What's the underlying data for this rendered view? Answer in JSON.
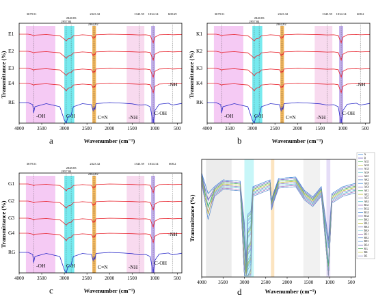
{
  "panels": [
    {
      "letter": "a",
      "ylabel": "Transmittance (%)",
      "xlabel": "Wavenumber (cm⁻¹)",
      "xticks": [
        "4000",
        "3500",
        "3000",
        "2500",
        "2000",
        "1500",
        "1000",
        "500"
      ],
      "peaks": [
        "3679.51",
        "2957.84",
        "2848.83",
        "2363.82",
        "2323.32",
        "1345.59",
        "1034.14",
        "608.69"
      ],
      "series": [
        "E1",
        "E2",
        "E3",
        "E4",
        "RE"
      ],
      "groups": [
        "-OH",
        "C-H",
        "C≡N",
        "-NH",
        "C-OH",
        "-NH"
      ]
    },
    {
      "letter": "b",
      "ylabel": "Transmittance (%)",
      "xlabel": "Wavenumber (cm⁻¹)",
      "xticks": [
        "4000",
        "3500",
        "3000",
        "2500",
        "2000",
        "1500",
        "1000",
        "500"
      ],
      "peaks": [
        "3679.51",
        "2957.84",
        "2848.83",
        "2363.82",
        "2323.32",
        "1345.59",
        "1034.14",
        "608.2"
      ],
      "series": [
        "K1",
        "K2",
        "K3",
        "K4",
        "RK"
      ],
      "groups": [
        "-OH",
        "C-H",
        "C≡N",
        "-NH",
        "C-OH",
        "-NH"
      ]
    },
    {
      "letter": "c",
      "ylabel": "Transmittance (%)",
      "xlabel": "Wavenumber (cm⁻¹)",
      "xticks": [
        "4000",
        "3500",
        "3000",
        "2500",
        "2000",
        "1500",
        "1000",
        "500"
      ],
      "peaks": [
        "3679.51",
        "2957.84",
        "2848.83",
        "2363.82",
        "2323.32",
        "1345.59",
        "1034.14",
        "608.2"
      ],
      "series": [
        "G1",
        "G2",
        "G3",
        "G4",
        "RG"
      ],
      "groups": [
        "-OH",
        "C-H",
        "C≡N",
        "-NH",
        "C-OH",
        "-NH"
      ]
    },
    {
      "letter": "d",
      "ylabel": "Transmittance (%)",
      "xlabel": "Wavenumber (cm⁻¹)",
      "xticks": [
        "4000",
        "3500",
        "3000",
        "2500",
        "2000",
        "1500",
        "1000",
        "500"
      ],
      "legend": [
        "A",
        "B",
        "AG1",
        "AG2",
        "AG3",
        "AG4",
        "AK1",
        "AK2",
        "AK3",
        "AK4",
        "AE1",
        "AE2",
        "AE3",
        "AE4",
        "BG1",
        "BG2",
        "BG3",
        "BG4",
        "BK1",
        "BK2",
        "BK3",
        "BK4",
        "BE1",
        "BE2",
        "BE3",
        "BE4",
        "RG",
        "RK",
        "RE"
      ]
    }
  ],
  "colors": {
    "red": "#e8202a",
    "blue": "#2525c8",
    "oh_band": "#f2b8f0",
    "ch_band": "#5fe6ec",
    "cn_band": "#f6b24a",
    "nh_band": "#f6cdea",
    "coh_band": "#b59ee8",
    "grey_band": "#b0b0b0"
  },
  "chart_data": [
    {
      "type": "line",
      "title": "",
      "xlabel": "Wavenumber (cm⁻¹)",
      "ylabel": "Transmittance (%)",
      "xlim": [
        4000,
        400
      ],
      "x": [
        4000,
        3800,
        3700,
        3679.51,
        3650,
        3400,
        3100,
        3000,
        2957.84,
        2920,
        2848.83,
        2800,
        2600,
        2400,
        2363.82,
        2340,
        2323.32,
        2300,
        2000,
        1700,
        1500,
        1345.59,
        1200,
        1100,
        1034.14,
        1000,
        900,
        700,
        608.69,
        400
      ],
      "series": [
        {
          "name": "E1",
          "values": [
            0,
            0,
            -0.08,
            -0.15,
            -0.08,
            -0.03,
            -0.12,
            -0.4,
            -0.55,
            -0.38,
            -0.32,
            -0.12,
            -0.05,
            -0.1,
            -0.35,
            -0.2,
            -0.3,
            -0.05,
            0,
            -0.02,
            -0.04,
            -0.06,
            -0.05,
            -0.1,
            -0.7,
            -0.25,
            -0.05,
            -0.02,
            -0.05,
            -0.02
          ]
        },
        {
          "name": "E2",
          "values": [
            0,
            0,
            -0.08,
            -0.15,
            -0.08,
            -0.03,
            -0.12,
            -0.42,
            -0.58,
            -0.4,
            -0.33,
            -0.12,
            -0.05,
            -0.1,
            -0.36,
            -0.2,
            -0.3,
            -0.05,
            0,
            -0.02,
            -0.04,
            -0.06,
            -0.05,
            -0.1,
            -0.72,
            -0.25,
            -0.05,
            -0.02,
            -0.05,
            -0.02
          ]
        },
        {
          "name": "E3",
          "values": [
            0,
            0,
            -0.08,
            -0.15,
            -0.08,
            -0.03,
            -0.12,
            -0.42,
            -0.58,
            -0.4,
            -0.33,
            -0.12,
            -0.05,
            -0.1,
            -0.36,
            -0.2,
            -0.3,
            -0.05,
            0,
            -0.02,
            -0.04,
            -0.06,
            -0.05,
            -0.1,
            -0.72,
            -0.25,
            -0.05,
            -0.02,
            -0.05,
            -0.02
          ]
        },
        {
          "name": "E4",
          "values": [
            0,
            0,
            -0.08,
            -0.15,
            -0.08,
            -0.03,
            -0.12,
            -0.42,
            -0.6,
            -0.4,
            -0.33,
            -0.12,
            -0.05,
            -0.1,
            -0.36,
            -0.2,
            -0.3,
            -0.05,
            0,
            -0.02,
            -0.04,
            -0.06,
            -0.05,
            -0.1,
            -0.75,
            -0.25,
            -0.05,
            -0.02,
            -0.05,
            -0.02
          ]
        },
        {
          "name": "RE",
          "values": [
            0,
            0,
            -0.1,
            -0.5,
            -0.2,
            -0.05,
            -0.2,
            -0.85,
            -1.0,
            -0.7,
            -0.6,
            -0.2,
            -0.05,
            -0.1,
            -0.4,
            -0.22,
            -0.35,
            -0.05,
            0,
            -0.03,
            -0.06,
            -0.12,
            -0.1,
            -0.2,
            -1.0,
            -0.4,
            -0.08,
            -0.03,
            -0.12,
            -0.04
          ]
        }
      ]
    },
    {
      "type": "line",
      "title": "",
      "xlabel": "Wavenumber (cm⁻¹)",
      "ylabel": "Transmittance (%)",
      "xlim": [
        4000,
        400
      ],
      "x": [
        4000,
        3800,
        3700,
        3679.51,
        3650,
        3400,
        3100,
        3000,
        2957.84,
        2920,
        2848.83,
        2800,
        2600,
        2400,
        2363.82,
        2340,
        2323.32,
        2300,
        2000,
        1700,
        1500,
        1345.59,
        1200,
        1100,
        1034.14,
        1000,
        900,
        700,
        608.2,
        400
      ],
      "series": [
        {
          "name": "K1",
          "values": [
            0,
            0,
            -0.08,
            -0.15,
            -0.08,
            -0.03,
            -0.12,
            -0.4,
            -0.55,
            -0.38,
            -0.32,
            -0.12,
            -0.05,
            -0.1,
            -0.35,
            -0.2,
            -0.3,
            -0.05,
            0,
            -0.02,
            -0.04,
            -0.06,
            -0.05,
            -0.1,
            -0.7,
            -0.25,
            -0.05,
            -0.02,
            -0.05,
            -0.02
          ]
        },
        {
          "name": "K2",
          "values": [
            0,
            0,
            -0.08,
            -0.15,
            -0.08,
            -0.03,
            -0.12,
            -0.42,
            -0.58,
            -0.4,
            -0.33,
            -0.12,
            -0.05,
            -0.1,
            -0.36,
            -0.2,
            -0.3,
            -0.05,
            0,
            -0.02,
            -0.04,
            -0.06,
            -0.05,
            -0.1,
            -0.72,
            -0.25,
            -0.05,
            -0.02,
            -0.05,
            -0.02
          ]
        },
        {
          "name": "K3",
          "values": [
            0,
            0,
            -0.08,
            -0.15,
            -0.08,
            -0.03,
            -0.12,
            -0.42,
            -0.6,
            -0.4,
            -0.33,
            -0.12,
            -0.05,
            -0.1,
            -0.36,
            -0.2,
            -0.3,
            -0.05,
            0,
            -0.02,
            -0.04,
            -0.06,
            -0.05,
            -0.1,
            -0.72,
            -0.25,
            -0.05,
            -0.02,
            -0.05,
            -0.02
          ]
        },
        {
          "name": "K4",
          "values": [
            0,
            0,
            -0.08,
            -0.15,
            -0.08,
            -0.03,
            -0.12,
            -0.42,
            -0.6,
            -0.4,
            -0.33,
            -0.12,
            -0.05,
            -0.1,
            -0.36,
            -0.2,
            -0.3,
            -0.05,
            0,
            -0.02,
            -0.04,
            -0.06,
            -0.05,
            -0.1,
            -0.75,
            -0.25,
            -0.05,
            -0.02,
            -0.05,
            -0.02
          ]
        },
        {
          "name": "RK",
          "values": [
            0,
            0,
            -0.1,
            -0.5,
            -0.2,
            -0.05,
            -0.2,
            -0.85,
            -1.0,
            -0.7,
            -0.6,
            -0.2,
            -0.05,
            -0.1,
            -0.4,
            -0.22,
            -0.35,
            -0.05,
            0,
            -0.03,
            -0.06,
            -0.12,
            -0.1,
            -0.2,
            -1.0,
            -0.4,
            -0.08,
            -0.03,
            -0.12,
            -0.04
          ]
        }
      ]
    },
    {
      "type": "line",
      "title": "",
      "xlabel": "Wavenumber (cm⁻¹)",
      "ylabel": "Transmittance (%)",
      "xlim": [
        4000,
        400
      ],
      "x": [
        4000,
        3800,
        3700,
        3679.51,
        3650,
        3400,
        3100,
        3000,
        2957.84,
        2920,
        2848.83,
        2800,
        2600,
        2400,
        2363.82,
        2340,
        2323.32,
        2300,
        2000,
        1700,
        1500,
        1345.59,
        1200,
        1100,
        1034.14,
        1000,
        900,
        700,
        608.2,
        400
      ],
      "series": [
        {
          "name": "G1",
          "values": [
            0,
            0,
            -0.08,
            -0.15,
            -0.08,
            -0.03,
            -0.12,
            -0.4,
            -0.55,
            -0.38,
            -0.32,
            -0.12,
            -0.05,
            -0.1,
            -0.35,
            -0.2,
            -0.3,
            -0.05,
            0,
            -0.02,
            -0.04,
            -0.06,
            -0.05,
            -0.1,
            -0.7,
            -0.25,
            -0.05,
            -0.02,
            -0.05,
            -0.02
          ]
        },
        {
          "name": "G2",
          "values": [
            0,
            0,
            -0.08,
            -0.15,
            -0.08,
            -0.03,
            -0.12,
            -0.42,
            -0.58,
            -0.4,
            -0.33,
            -0.12,
            -0.05,
            -0.1,
            -0.36,
            -0.2,
            -0.3,
            -0.05,
            0,
            -0.02,
            -0.04,
            -0.06,
            -0.05,
            -0.1,
            -0.72,
            -0.25,
            -0.05,
            -0.02,
            -0.05,
            -0.02
          ]
        },
        {
          "name": "G3",
          "values": [
            0,
            0,
            -0.08,
            -0.15,
            -0.08,
            -0.03,
            -0.12,
            -0.42,
            -0.58,
            -0.4,
            -0.33,
            -0.12,
            -0.05,
            -0.1,
            -0.36,
            -0.2,
            -0.3,
            -0.05,
            0,
            -0.02,
            -0.04,
            -0.06,
            -0.05,
            -0.1,
            -0.72,
            -0.25,
            -0.05,
            -0.02,
            -0.05,
            -0.02
          ]
        },
        {
          "name": "G4",
          "values": [
            0,
            0,
            -0.08,
            -0.15,
            -0.08,
            -0.03,
            -0.12,
            -0.42,
            -0.6,
            -0.4,
            -0.33,
            -0.12,
            -0.05,
            -0.1,
            -0.36,
            -0.2,
            -0.3,
            -0.05,
            0,
            -0.02,
            -0.04,
            -0.06,
            -0.05,
            -0.1,
            -0.75,
            -0.25,
            -0.05,
            -0.02,
            -0.05,
            -0.02
          ]
        },
        {
          "name": "RG",
          "values": [
            0,
            0,
            -0.1,
            -0.5,
            -0.2,
            -0.05,
            -0.2,
            -0.85,
            -1.0,
            -0.7,
            -0.6,
            -0.2,
            -0.05,
            -0.1,
            -0.4,
            -0.22,
            -0.35,
            -0.05,
            0,
            -0.03,
            -0.06,
            -0.12,
            -0.1,
            -0.2,
            -1.0,
            -0.4,
            -0.08,
            -0.03,
            -0.12,
            -0.04
          ]
        }
      ]
    },
    {
      "type": "line",
      "title": "",
      "xlabel": "Wavenumber (cm⁻¹)",
      "ylabel": "Transmittance (%)",
      "xlim": [
        4000,
        400
      ],
      "series_names": [
        "A",
        "B",
        "AG1",
        "AG2",
        "AG3",
        "AG4",
        "AK1",
        "AK2",
        "AK3",
        "AK4",
        "AE1",
        "AE2",
        "AE3",
        "AE4",
        "BG1",
        "BG2",
        "BG3",
        "BG4",
        "BK1",
        "BK2",
        "BK3",
        "BK4",
        "BE1",
        "BE2",
        "BE3",
        "BE4",
        "RG",
        "RK",
        "RE"
      ]
    }
  ]
}
